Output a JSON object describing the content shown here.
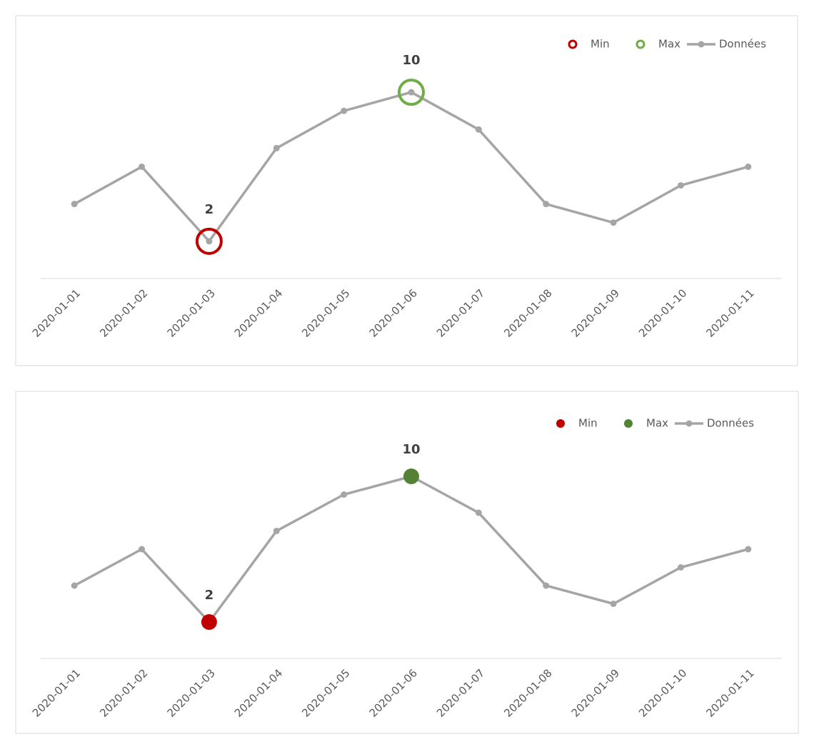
{
  "chart_data": [
    {
      "type": "line",
      "categories": [
        "2020-01-01",
        "2020-01-02",
        "2020-01-03",
        "2020-01-04",
        "2020-01-05",
        "2020-01-06",
        "2020-01-07",
        "2020-01-08",
        "2020-01-09",
        "2020-01-10",
        "2020-01-11"
      ],
      "series": [
        {
          "name": "Min",
          "color": "#c00000",
          "marker": "hollow",
          "values": [
            null,
            null,
            2,
            null,
            null,
            null,
            null,
            null,
            null,
            null,
            null
          ]
        },
        {
          "name": "Max",
          "color": "#70ad47",
          "marker": "hollow",
          "values": [
            null,
            null,
            null,
            null,
            null,
            10,
            null,
            null,
            null,
            null,
            null
          ]
        },
        {
          "name": "Données",
          "color": "#a5a5a5",
          "marker": "line",
          "values": [
            4,
            6,
            2,
            7,
            9,
            10,
            8,
            4,
            3,
            5,
            6
          ]
        }
      ],
      "ylim": [
        0,
        12
      ],
      "legend": "top-right"
    },
    {
      "type": "line",
      "categories": [
        "2020-01-01",
        "2020-01-02",
        "2020-01-03",
        "2020-01-04",
        "2020-01-05",
        "2020-01-06",
        "2020-01-07",
        "2020-01-08",
        "2020-01-09",
        "2020-01-10",
        "2020-01-11"
      ],
      "series": [
        {
          "name": "Min",
          "color": "#c00000",
          "marker": "filled",
          "values": [
            null,
            null,
            2,
            null,
            null,
            null,
            null,
            null,
            null,
            null,
            null
          ]
        },
        {
          "name": "Max",
          "color": "#548235",
          "marker": "filled",
          "values": [
            null,
            null,
            null,
            null,
            null,
            10,
            null,
            null,
            null,
            null,
            null
          ]
        },
        {
          "name": "Données",
          "color": "#a5a5a5",
          "marker": "line",
          "values": [
            4,
            6,
            2,
            7,
            9,
            10,
            8,
            4,
            3,
            5,
            6
          ]
        }
      ],
      "ylim": [
        0,
        12
      ],
      "legend": "top-right"
    }
  ]
}
